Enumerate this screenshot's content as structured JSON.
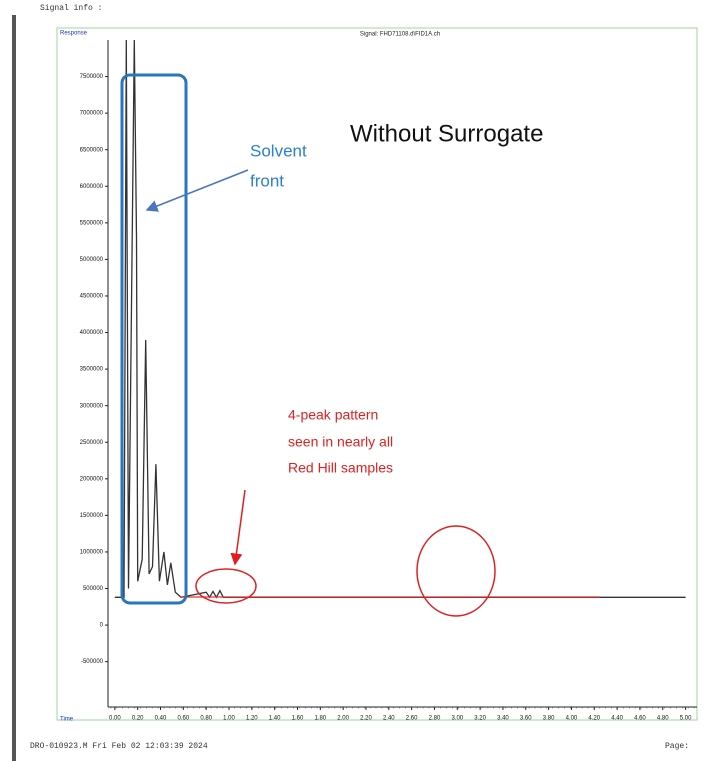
{
  "header": "Signal info :",
  "footer": {
    "left": "DRO-010923.M Fri Feb 02 12:03:39 2024",
    "right": "Page:"
  },
  "chart_data": {
    "type": "line",
    "title": "Signal: FHD71108.d\\FID1A.ch",
    "y_label": "Response",
    "x_label": "Time",
    "x": [
      0.0,
      0.08,
      0.1,
      0.12,
      0.17,
      0.19,
      0.2,
      0.24,
      0.27,
      0.3,
      0.33,
      0.36,
      0.39,
      0.43,
      0.46,
      0.49,
      0.53,
      0.58,
      0.8,
      0.83,
      0.86,
      0.89,
      0.92,
      0.95,
      5.0
    ],
    "values": [
      380000,
      380000,
      8000000,
      500000,
      8000000,
      5300000,
      600000,
      900000,
      3900000,
      700000,
      800000,
      2200000,
      600000,
      1000000,
      550000,
      850000,
      450000,
      380000,
      450000,
      380000,
      460000,
      380000,
      470000,
      380000,
      380000
    ],
    "color": "#333333",
    "xlim": [
      -0.06,
      5.1
    ],
    "ylim": [
      -1120000,
      8000000
    ],
    "yticks": [
      -500000,
      0,
      500000,
      1000000,
      1500000,
      2000000,
      2500000,
      3000000,
      3500000,
      4000000,
      4500000,
      5000000,
      5500000,
      6000000,
      6500000,
      7000000,
      7500000
    ],
    "xticks": [
      {
        "value": 0,
        "label": "0.00"
      },
      {
        "value": 0.2,
        "label": "0.20"
      },
      {
        "value": 0.4,
        "label": "0.40"
      },
      {
        "value": 0.6,
        "label": "0.60"
      },
      {
        "value": 0.8,
        "label": "0.80"
      },
      {
        "value": 1.0,
        "label": "1.00"
      },
      {
        "value": 1.2,
        "label": "1.20"
      },
      {
        "value": 1.4,
        "label": "1.40"
      },
      {
        "value": 1.6,
        "label": "1.60"
      },
      {
        "value": 1.8,
        "label": "1.80"
      },
      {
        "value": 2.0,
        "label": "2.00"
      },
      {
        "value": 2.2,
        "label": "2.20"
      },
      {
        "value": 2.4,
        "label": "2.40"
      },
      {
        "value": 2.6,
        "label": "2.60"
      },
      {
        "value": 2.8,
        "label": "2.80"
      },
      {
        "value": 3.0,
        "label": "3.00"
      },
      {
        "value": 3.2,
        "label": "3.20"
      },
      {
        "value": 3.4,
        "label": "3.40"
      },
      {
        "value": 3.6,
        "label": "3.60"
      },
      {
        "value": 3.8,
        "label": "3.80"
      },
      {
        "value": 4.0,
        "label": "4.00"
      },
      {
        "value": 4.2,
        "label": "4.20"
      },
      {
        "value": 4.4,
        "label": "4.40"
      },
      {
        "value": 4.6,
        "label": "4.60"
      },
      {
        "value": 4.8,
        "label": "4.80"
      },
      {
        "value": 5.0,
        "label": "5.00"
      }
    ],
    "annotations": {
      "main": "Without Surrogate",
      "solvent": [
        "Solvent",
        "front"
      ],
      "pattern": [
        "4-peak pattern",
        "seen in nearly all",
        "Red Hill samples"
      ]
    }
  }
}
